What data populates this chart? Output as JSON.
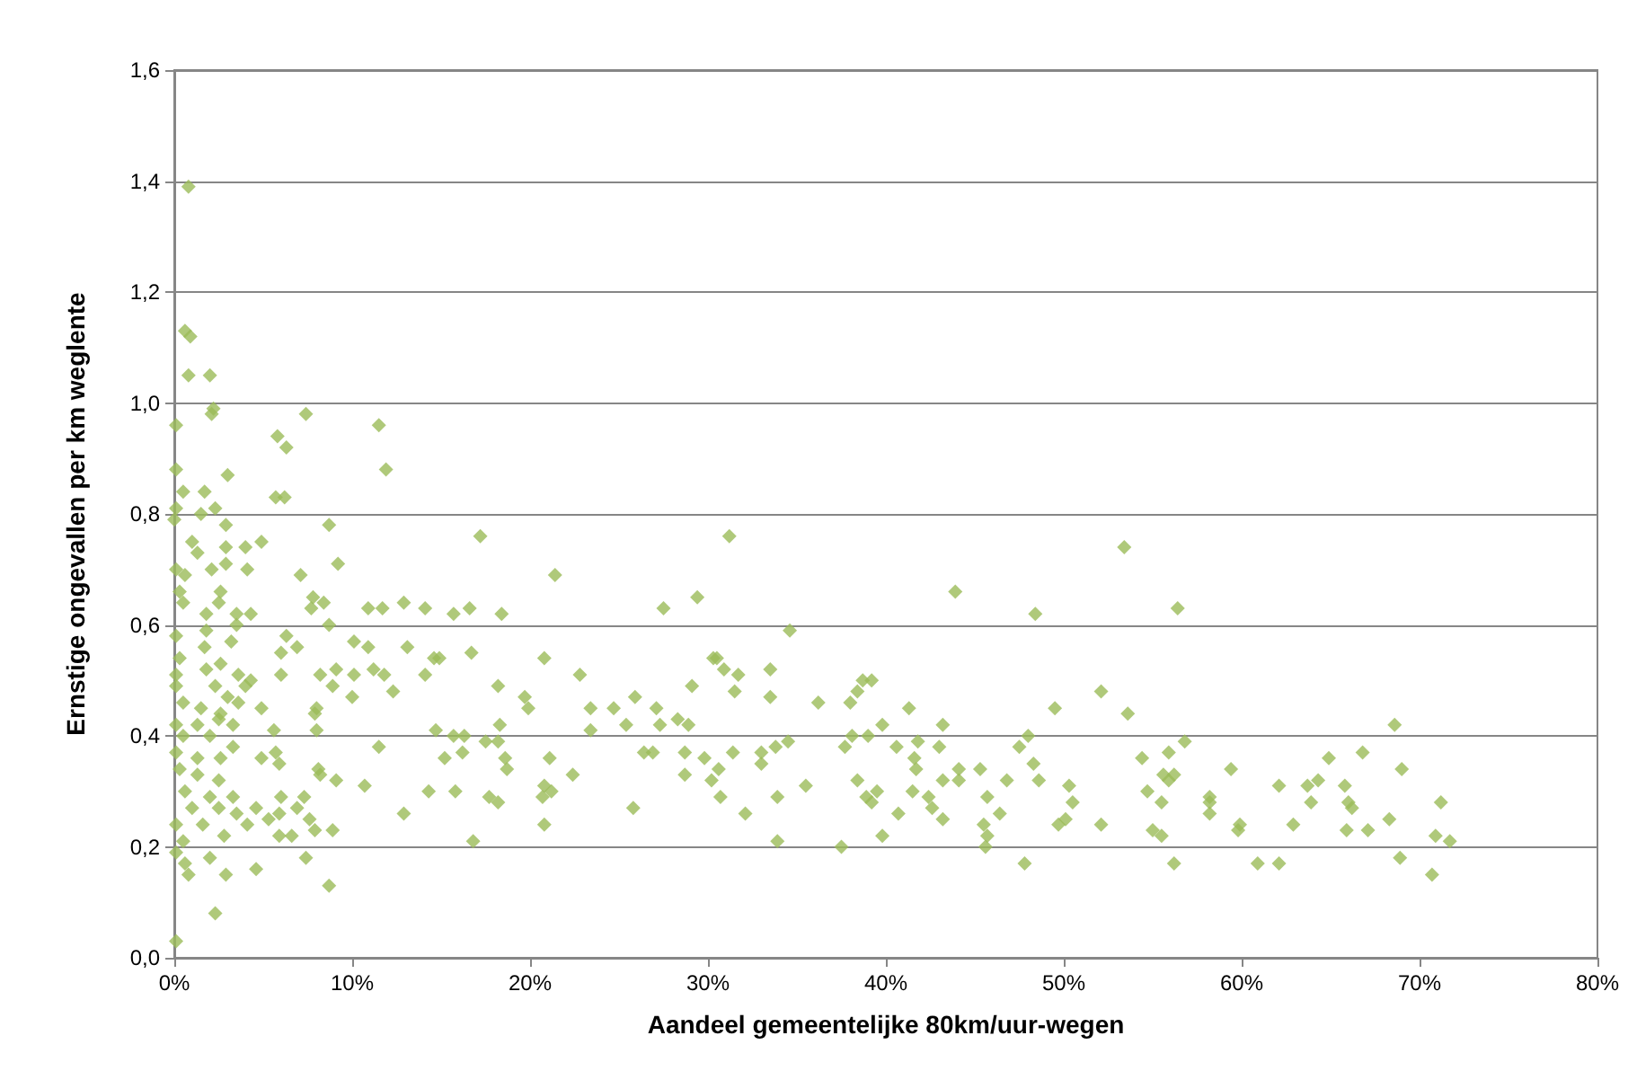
{
  "chart_data": {
    "type": "scatter",
    "xlabel": "Aandeel gemeentelijke 80km/uur-wegen",
    "ylabel": "Ernstige ongevallen per km weglente",
    "marker": "diamond",
    "grid": "y",
    "xlim": [
      0,
      80
    ],
    "xticks": [
      {
        "value": 0,
        "label": "0%"
      },
      {
        "value": 10,
        "label": "10%"
      },
      {
        "value": 20,
        "label": "20%"
      },
      {
        "value": 30,
        "label": "30%"
      },
      {
        "value": 40,
        "label": "40%"
      },
      {
        "value": 50,
        "label": "50%"
      },
      {
        "value": 60,
        "label": "60%"
      },
      {
        "value": 70,
        "label": "70%"
      },
      {
        "value": 80,
        "label": "80%"
      }
    ],
    "ylim": [
      0,
      1.6
    ],
    "yticks": [
      {
        "value": 0,
        "label": "0,0"
      },
      {
        "value": 0.2,
        "label": "0,2"
      },
      {
        "value": 0.4,
        "label": "0,4"
      },
      {
        "value": 0.6,
        "label": "0,6"
      },
      {
        "value": 0.8,
        "label": "0,8"
      },
      {
        "value": 1.0,
        "label": "1,0"
      },
      {
        "value": 1.2,
        "label": "1,2"
      },
      {
        "value": 1.4,
        "label": "1,4"
      },
      {
        "value": 1.6,
        "label": "1,6"
      }
    ],
    "series": [
      {
        "color": "#9bbb59",
        "x": [
          0.1,
          0.8,
          0.6,
          0.9,
          0.8,
          2.0,
          2.2,
          2.1,
          0.1,
          5.8,
          6.3,
          7.4,
          11.5,
          11.9,
          0.1,
          3.0,
          0.5,
          1.7,
          5.7,
          6.2,
          0.1,
          1.5,
          2.3,
          0.0,
          2.9,
          8.7,
          1.0,
          2.9,
          4.0,
          4.9,
          1.3,
          17.2,
          0.1,
          0.6,
          2.1,
          2.9,
          4.1,
          7.1,
          9.2,
          0.3,
          2.6,
          0.5,
          2.5,
          7.8,
          8.4,
          7.7,
          3.5,
          4.3,
          1.8,
          10.9,
          11.7,
          12.9,
          14.1,
          15.7,
          16.6,
          18.4,
          8.7,
          0.1,
          1.8,
          3.5,
          6.3,
          3.2,
          1.7,
          6.9,
          6.0,
          10.1,
          10.9,
          13.1,
          16.7,
          0.3,
          1.8,
          2.6,
          0.1,
          3.6,
          4.3,
          6.0,
          8.2,
          9.1,
          10.1,
          11.2,
          11.8,
          14.6,
          14.9,
          14.1,
          0.1,
          2.3,
          4.0,
          8.9,
          12.3,
          18.2,
          0.5,
          3.0,
          3.6,
          10.0,
          1.5,
          2.6,
          4.9,
          8.0,
          0.1,
          1.3,
          2.5,
          3.3,
          7.9,
          0.5,
          2.0,
          5.6,
          8.0,
          14.7,
          15.7,
          16.3,
          17.5,
          18.3,
          18.2,
          0.1,
          1.3,
          3.3,
          5.7,
          11.5,
          15.2,
          16.2,
          18.6,
          18.7,
          2.6,
          4.9,
          5.9,
          0.3,
          1.3,
          8.1,
          2.5,
          8.2,
          9.1,
          10.7,
          0.6,
          15.8,
          14.3,
          17.7,
          18.2,
          2.0,
          3.3,
          6.0,
          7.3,
          1.0,
          2.5,
          4.6,
          3.5,
          5.3,
          5.9,
          6.9,
          7.6,
          12.9,
          0.1,
          1.6,
          4.1,
          7.9,
          8.9,
          5.9,
          6.6,
          2.8,
          0.5,
          16.8,
          0.1,
          2.0,
          0.6,
          7.4,
          4.6,
          0.8,
          2.9,
          8.7,
          2.3,
          21.4,
          31.2,
          27.5,
          29.4,
          43.9,
          48.4,
          34.6,
          20.8,
          22.8,
          30.3,
          30.5,
          30.9,
          31.7,
          31.5,
          33.5,
          33.5,
          29.1,
          19.7,
          19.9,
          23.4,
          23.4,
          24.7,
          25.4,
          25.9,
          27.1,
          27.3,
          28.3,
          28.9,
          36.2,
          38.0,
          38.4,
          38.7,
          39.2,
          41.3,
          43.2,
          48.0,
          47.5,
          21.1,
          22.4,
          20.8,
          21.2,
          20.7,
          20.8,
          25.8,
          26.4,
          26.9,
          28.7,
          28.7,
          29.8,
          30.6,
          30.2,
          30.7,
          31.4,
          32.1,
          33.0,
          33.0,
          33.8,
          34.5,
          33.9,
          33.9,
          35.5,
          37.7,
          38.1,
          39.0,
          39.8,
          38.4,
          38.9,
          39.5,
          39.2,
          37.5,
          39.8,
          40.7,
          40.6,
          41.8,
          41.6,
          41.7,
          41.5,
          42.4,
          42.6,
          43.2,
          43.0,
          43.2,
          44.1,
          44.1,
          45.3,
          45.7,
          46.4,
          46.8,
          45.5,
          45.7,
          45.6,
          47.8,
          48.3,
          48.6,
          53.4,
          56.4,
          49.5,
          52.1,
          53.6,
          50.3,
          50.5,
          49.7,
          50.1,
          52.1,
          54.4,
          55.9,
          56.8,
          54.7,
          55.5,
          55.6,
          56.2,
          55.9,
          55.0,
          55.5,
          56.2,
          58.2,
          58.2,
          58.2,
          59.4,
          59.9,
          59.8,
          60.9,
          62.1,
          62.1,
          62.9,
          63.7,
          63.9,
          64.3,
          64.9,
          65.8,
          66.0,
          66.2,
          65.9,
          67.1,
          66.8,
          68.6,
          69.0,
          68.3,
          68.9,
          70.7,
          71.2,
          70.9,
          71.7
        ],
        "values": [
          0.03,
          1.39,
          1.13,
          1.12,
          1.05,
          1.05,
          0.99,
          0.98,
          0.96,
          0.94,
          0.92,
          0.98,
          0.96,
          0.88,
          0.88,
          0.87,
          0.84,
          0.84,
          0.83,
          0.83,
          0.81,
          0.8,
          0.81,
          0.79,
          0.78,
          0.78,
          0.75,
          0.74,
          0.74,
          0.75,
          0.73,
          0.76,
          0.7,
          0.69,
          0.7,
          0.71,
          0.7,
          0.69,
          0.71,
          0.66,
          0.66,
          0.64,
          0.64,
          0.65,
          0.64,
          0.63,
          0.62,
          0.62,
          0.62,
          0.63,
          0.63,
          0.64,
          0.63,
          0.62,
          0.63,
          0.62,
          0.6,
          0.58,
          0.59,
          0.6,
          0.58,
          0.57,
          0.56,
          0.56,
          0.55,
          0.57,
          0.56,
          0.56,
          0.55,
          0.54,
          0.52,
          0.53,
          0.51,
          0.51,
          0.5,
          0.51,
          0.51,
          0.52,
          0.51,
          0.52,
          0.51,
          0.54,
          0.54,
          0.51,
          0.49,
          0.49,
          0.49,
          0.49,
          0.48,
          0.49,
          0.46,
          0.47,
          0.46,
          0.47,
          0.45,
          0.44,
          0.45,
          0.45,
          0.42,
          0.42,
          0.43,
          0.42,
          0.44,
          0.4,
          0.4,
          0.41,
          0.41,
          0.41,
          0.4,
          0.4,
          0.39,
          0.42,
          0.39,
          0.37,
          0.36,
          0.38,
          0.37,
          0.38,
          0.36,
          0.37,
          0.36,
          0.34,
          0.36,
          0.36,
          0.35,
          0.34,
          0.33,
          0.34,
          0.32,
          0.33,
          0.32,
          0.31,
          0.3,
          0.3,
          0.3,
          0.29,
          0.28,
          0.29,
          0.29,
          0.29,
          0.29,
          0.27,
          0.27,
          0.27,
          0.26,
          0.25,
          0.26,
          0.27,
          0.25,
          0.26,
          0.24,
          0.24,
          0.24,
          0.23,
          0.23,
          0.22,
          0.22,
          0.22,
          0.21,
          0.21,
          0.19,
          0.18,
          0.17,
          0.18,
          0.16,
          0.15,
          0.15,
          0.13,
          0.08,
          0.69,
          0.76,
          0.63,
          0.65,
          0.66,
          0.62,
          0.59,
          0.54,
          0.51,
          0.54,
          0.54,
          0.52,
          0.51,
          0.48,
          0.52,
          0.47,
          0.49,
          0.47,
          0.45,
          0.45,
          0.41,
          0.45,
          0.42,
          0.47,
          0.45,
          0.42,
          0.43,
          0.42,
          0.46,
          0.46,
          0.48,
          0.5,
          0.5,
          0.45,
          0.42,
          0.4,
          0.38,
          0.36,
          0.33,
          0.31,
          0.3,
          0.29,
          0.24,
          0.27,
          0.37,
          0.37,
          0.37,
          0.33,
          0.36,
          0.34,
          0.32,
          0.29,
          0.37,
          0.26,
          0.37,
          0.35,
          0.38,
          0.39,
          0.29,
          0.21,
          0.31,
          0.38,
          0.4,
          0.4,
          0.42,
          0.32,
          0.29,
          0.3,
          0.28,
          0.2,
          0.22,
          0.26,
          0.38,
          0.39,
          0.36,
          0.34,
          0.3,
          0.29,
          0.27,
          0.25,
          0.38,
          0.32,
          0.34,
          0.32,
          0.34,
          0.29,
          0.26,
          0.32,
          0.24,
          0.22,
          0.2,
          0.17,
          0.35,
          0.32,
          0.74,
          0.63,
          0.45,
          0.48,
          0.44,
          0.31,
          0.28,
          0.24,
          0.25,
          0.24,
          0.36,
          0.37,
          0.39,
          0.3,
          0.28,
          0.33,
          0.33,
          0.32,
          0.23,
          0.22,
          0.17,
          0.29,
          0.28,
          0.26,
          0.34,
          0.24,
          0.23,
          0.17,
          0.17,
          0.31,
          0.24,
          0.31,
          0.28,
          0.32,
          0.36,
          0.31,
          0.28,
          0.27,
          0.23,
          0.23,
          0.37,
          0.42,
          0.34,
          0.25,
          0.18,
          0.15,
          0.28,
          0.22,
          0.21
        ]
      }
    ]
  }
}
